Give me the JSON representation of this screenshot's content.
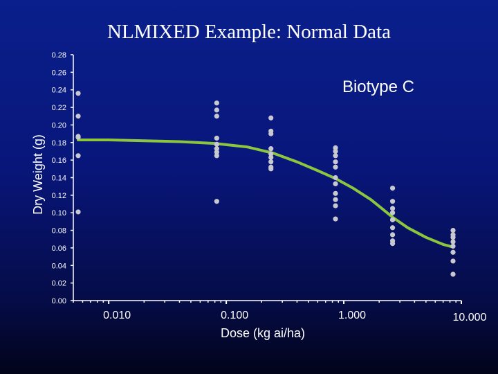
{
  "chart_data": {
    "type": "scatter",
    "title": "NLMIXED Example: Normal Data",
    "xlabel": "Dose (kg ai/ha)",
    "ylabel": "Dry Weight (g)",
    "x_scale": "log",
    "xlim": [
      0.005,
      10
    ],
    "ylim": [
      0,
      0.28
    ],
    "x_ticks": [
      "0.010",
      "0.100",
      "1.000",
      "10.000"
    ],
    "y_ticks": [
      "0.00",
      "0.02",
      "0.04",
      "0.06",
      "0.08",
      "0.10",
      "0.12",
      "0.14",
      "0.16",
      "0.18",
      "0.20",
      "0.22",
      "0.24",
      "0.26",
      "0.28"
    ],
    "annotation": "Biotype C",
    "grid": false,
    "colors": {
      "points": "#c8c8d0",
      "fit": "#8cc63f",
      "axes": "#ffffff"
    },
    "series": [
      {
        "kind": "points",
        "points": [
          [
            0.0055,
            0.236
          ],
          [
            0.0055,
            0.21
          ],
          [
            0.0055,
            0.187
          ],
          [
            0.0055,
            0.186
          ],
          [
            0.0055,
            0.165
          ],
          [
            0.0055,
            0.101
          ],
          [
            0.083,
            0.225
          ],
          [
            0.083,
            0.217
          ],
          [
            0.083,
            0.21
          ],
          [
            0.083,
            0.185
          ],
          [
            0.083,
            0.178
          ],
          [
            0.083,
            0.173
          ],
          [
            0.083,
            0.169
          ],
          [
            0.083,
            0.165
          ],
          [
            0.083,
            0.113
          ],
          [
            0.24,
            0.208
          ],
          [
            0.24,
            0.193
          ],
          [
            0.24,
            0.19
          ],
          [
            0.24,
            0.173
          ],
          [
            0.24,
            0.167
          ],
          [
            0.24,
            0.163
          ],
          [
            0.24,
            0.158
          ],
          [
            0.24,
            0.152
          ],
          [
            0.24,
            0.15
          ],
          [
            0.85,
            0.174
          ],
          [
            0.85,
            0.17
          ],
          [
            0.85,
            0.165
          ],
          [
            0.85,
            0.158
          ],
          [
            0.85,
            0.152
          ],
          [
            0.85,
            0.14
          ],
          [
            0.85,
            0.133
          ],
          [
            0.85,
            0.122
          ],
          [
            0.85,
            0.115
          ],
          [
            0.85,
            0.108
          ],
          [
            0.85,
            0.093
          ],
          [
            2.6,
            0.128
          ],
          [
            2.6,
            0.113
          ],
          [
            2.6,
            0.105
          ],
          [
            2.6,
            0.1
          ],
          [
            2.6,
            0.092
          ],
          [
            2.6,
            0.083
          ],
          [
            2.6,
            0.075
          ],
          [
            2.6,
            0.068
          ],
          [
            2.6,
            0.065
          ],
          [
            8.5,
            0.08
          ],
          [
            8.5,
            0.075
          ],
          [
            8.5,
            0.072
          ],
          [
            8.5,
            0.067
          ],
          [
            8.5,
            0.062
          ],
          [
            8.5,
            0.055
          ],
          [
            8.5,
            0.045
          ],
          [
            8.5,
            0.03
          ]
        ]
      },
      {
        "kind": "line",
        "points": [
          [
            0.0055,
            0.183
          ],
          [
            0.01,
            0.183
          ],
          [
            0.02,
            0.182
          ],
          [
            0.04,
            0.181
          ],
          [
            0.08,
            0.179
          ],
          [
            0.15,
            0.175
          ],
          [
            0.25,
            0.168
          ],
          [
            0.4,
            0.158
          ],
          [
            0.6,
            0.148
          ],
          [
            0.85,
            0.139
          ],
          [
            1.2,
            0.128
          ],
          [
            1.7,
            0.115
          ],
          [
            2.6,
            0.095
          ],
          [
            3.5,
            0.083
          ],
          [
            5,
            0.072
          ],
          [
            7,
            0.064
          ],
          [
            8.5,
            0.061
          ]
        ]
      }
    ]
  }
}
